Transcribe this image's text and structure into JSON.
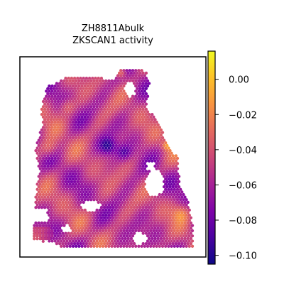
{
  "chart_data": {
    "type": "heatmap",
    "title": "ZH8811Abulk",
    "subtitle": "ZKSCAN1 activity",
    "xlabel": "",
    "ylabel": "",
    "colormap": "plasma",
    "colorbar": {
      "range": [
        -0.105,
        0.016
      ],
      "ticks": [
        0.0,
        -0.02,
        -0.04,
        -0.06,
        -0.08,
        -0.1
      ],
      "tick_labels": [
        "0.00",
        "−0.02",
        "−0.04",
        "−0.06",
        "−0.08",
        "−0.10"
      ],
      "position": "right"
    },
    "axes": {
      "x_ticks": "none",
      "y_ticks": "none",
      "grid": false
    },
    "spots": {
      "layout": "hexagonal grid of spatial spots",
      "value_range_observed": [
        -0.105,
        0.016
      ],
      "typical_value": -0.05,
      "notes": "Spatial transcriptomics spots colored by ZKSCAN1 activity; holes in tissue near center-right and bottom-left-center."
    }
  },
  "colors": {
    "plasma_low": "#0d0887",
    "plasma_mid": "#cc4778",
    "plasma_high": "#f0f921",
    "frame": "#000000",
    "background": "#ffffff"
  }
}
